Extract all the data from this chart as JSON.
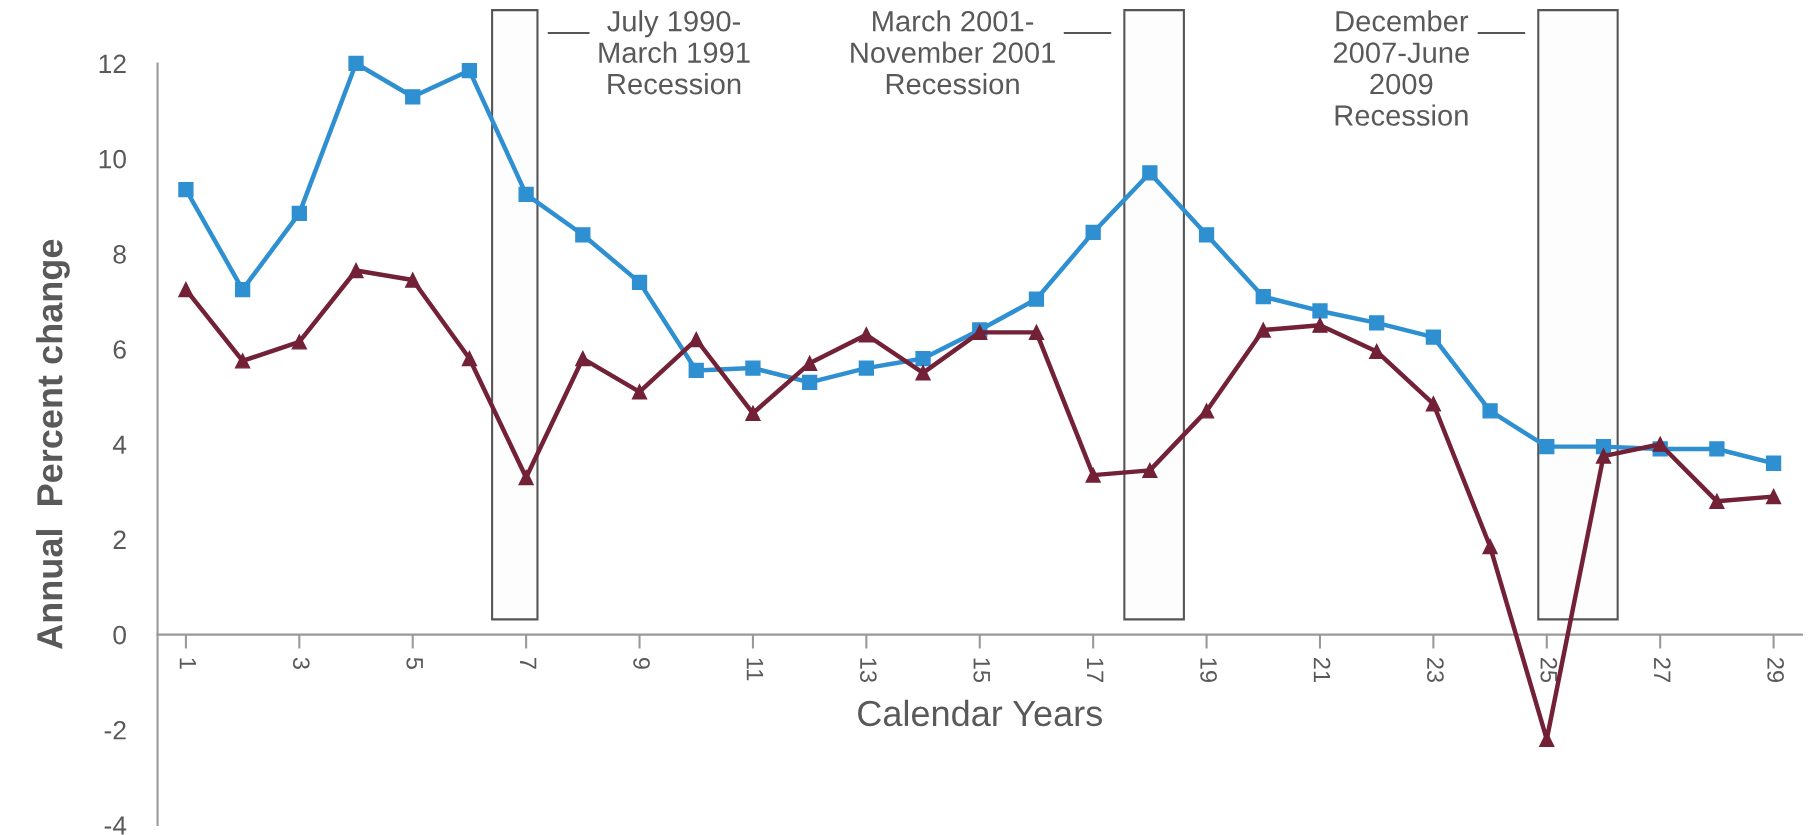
{
  "chart_data": {
    "type": "line",
    "xlabel": "Calendar Years",
    "ylabel": "Annual  Percent change",
    "x": [
      1,
      2,
      3,
      4,
      5,
      6,
      7,
      8,
      9,
      10,
      11,
      12,
      13,
      14,
      15,
      16,
      17,
      18,
      19,
      20,
      21,
      22,
      23,
      24,
      25,
      26,
      27,
      28,
      29
    ],
    "xlim": [
      0.5,
      29.5
    ],
    "xticks": [
      1,
      3,
      5,
      7,
      9,
      11,
      13,
      15,
      17,
      19,
      21,
      23,
      25,
      27,
      29
    ],
    "ylim": [
      -4,
      12
    ],
    "yticks": [
      -4,
      -2,
      0,
      2,
      4,
      6,
      8,
      10,
      12
    ],
    "grid": false,
    "line_style": "solid",
    "series": [
      {
        "color": "#2e8fd1",
        "marker": "square",
        "values": [
          9.35,
          7.25,
          8.85,
          12.0,
          11.3,
          11.85,
          9.25,
          8.4,
          7.4,
          5.55,
          5.6,
          5.3,
          5.6,
          5.8,
          6.4,
          7.05,
          8.45,
          9.7,
          8.4,
          7.1,
          6.8,
          6.55,
          6.25,
          4.7,
          3.95,
          3.95,
          3.9,
          3.9,
          3.6
        ]
      },
      {
        "color": "#722136",
        "marker": "triangle",
        "values": [
          7.25,
          5.75,
          6.15,
          7.65,
          7.45,
          5.8,
          3.3,
          5.8,
          5.1,
          6.2,
          4.65,
          5.7,
          6.3,
          5.5,
          6.35,
          6.35,
          3.35,
          3.45,
          4.7,
          6.4,
          6.5,
          5.95,
          4.85,
          1.85,
          -2.2,
          3.75,
          4.0,
          2.8,
          2.9
        ]
      }
    ],
    "bands": [
      {
        "axis": "x",
        "from": 6.4,
        "to": 7.2,
        "label": "July 1990-\nMarch 1991\nRecession",
        "color": "#555555"
      },
      {
        "axis": "x",
        "from": 17.55,
        "to": 18.6,
        "label": "March 2001-\nNovember 2001\nRecession",
        "color": "#555555"
      },
      {
        "axis": "x",
        "from": 24.85,
        "to": 26.25,
        "label": "December\n2007-June\n2009\nRecession",
        "color": "#555555"
      }
    ]
  }
}
